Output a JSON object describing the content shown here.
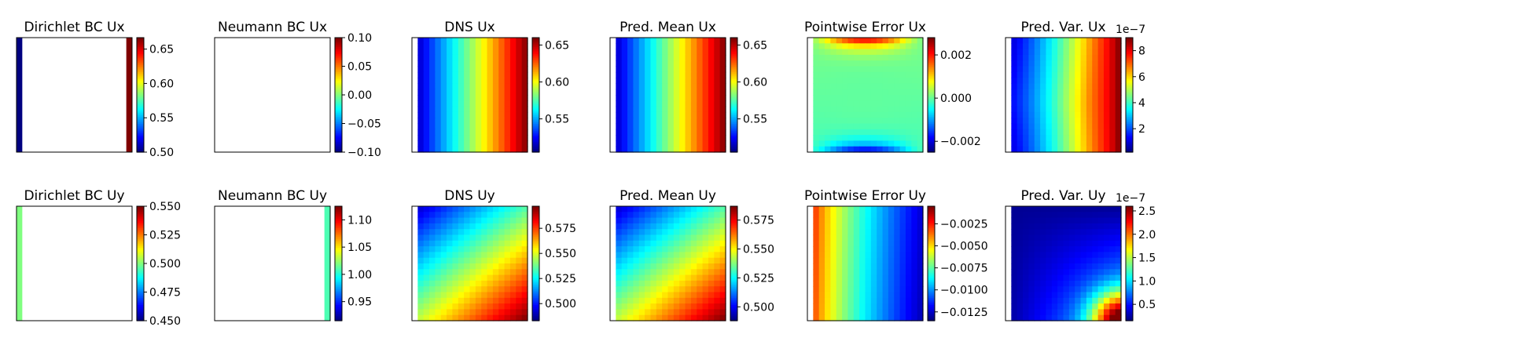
{
  "colormap": "jet",
  "chart_data": [
    {
      "type": "heatmap",
      "title": "Dirichlet BC Ux",
      "pattern": "dir_x",
      "vmin": 0.5,
      "vmax": 0.6667,
      "colorbar_ticks": [
        "0.50",
        "0.55",
        "0.60",
        "0.65"
      ],
      "colorbar_tick_values": [
        0.5,
        0.55,
        0.6,
        0.65
      ],
      "multiplier": ""
    },
    {
      "type": "heatmap",
      "title": "Neumann BC Ux",
      "pattern": "blank",
      "vmin": -0.1,
      "vmax": 0.1,
      "colorbar_ticks": [
        "−0.10",
        "−0.05",
        "0.00",
        "0.05",
        "0.10"
      ],
      "colorbar_tick_values": [
        -0.1,
        -0.05,
        0.0,
        0.05,
        0.1
      ],
      "multiplier": ""
    },
    {
      "type": "heatmap",
      "title": "DNS Ux",
      "pattern": "grad_x",
      "vmin": 0.505,
      "vmax": 0.66,
      "colorbar_ticks": [
        "0.55",
        "0.60",
        "0.65"
      ],
      "colorbar_tick_values": [
        0.55,
        0.6,
        0.65
      ],
      "multiplier": ""
    },
    {
      "type": "heatmap",
      "title": "Pred. Mean Ux",
      "pattern": "grad_x",
      "vmin": 0.505,
      "vmax": 0.66,
      "colorbar_ticks": [
        "0.55",
        "0.60",
        "0.65"
      ],
      "colorbar_tick_values": [
        0.55,
        0.6,
        0.65
      ],
      "multiplier": ""
    },
    {
      "type": "heatmap",
      "title": "Pointwise Error Ux",
      "pattern": "err_x",
      "vmin": -0.0025,
      "vmax": 0.0028,
      "colorbar_ticks": [
        "−0.002",
        "0.000",
        "0.002"
      ],
      "colorbar_tick_values": [
        -0.002,
        0.0,
        0.002
      ],
      "multiplier": ""
    },
    {
      "type": "heatmap",
      "title": "Pred. Var. Ux",
      "pattern": "var_x",
      "vmin": 0.2,
      "vmax": 9.0,
      "colorbar_ticks": [
        "2",
        "4",
        "6",
        "8"
      ],
      "colorbar_tick_values": [
        2,
        4,
        6,
        8
      ],
      "multiplier": "1e−7"
    },
    {
      "type": "heatmap",
      "title": "Dirichlet BC Uy",
      "pattern": "dir_y",
      "vmin": 0.45,
      "vmax": 0.55,
      "colorbar_ticks": [
        "0.450",
        "0.475",
        "0.500",
        "0.525",
        "0.550"
      ],
      "colorbar_tick_values": [
        0.45,
        0.475,
        0.5,
        0.525,
        0.55
      ],
      "multiplier": ""
    },
    {
      "type": "heatmap",
      "title": "Neumann BC Uy",
      "pattern": "neu_y",
      "vmin": 0.915,
      "vmax": 1.125,
      "colorbar_ticks": [
        "0.95",
        "1.00",
        "1.05",
        "1.10"
      ],
      "colorbar_tick_values": [
        0.95,
        1.0,
        1.05,
        1.1
      ],
      "multiplier": ""
    },
    {
      "type": "heatmap",
      "title": "DNS Uy",
      "pattern": "diag_y",
      "vmin": 0.483,
      "vmax": 0.597,
      "colorbar_ticks": [
        "0.500",
        "0.525",
        "0.550",
        "0.575"
      ],
      "colorbar_tick_values": [
        0.5,
        0.525,
        0.55,
        0.575
      ],
      "multiplier": ""
    },
    {
      "type": "heatmap",
      "title": "Pred. Mean Uy",
      "pattern": "diag_y",
      "vmin": 0.488,
      "vmax": 0.587,
      "colorbar_ticks": [
        "0.500",
        "0.525",
        "0.550",
        "0.575"
      ],
      "colorbar_tick_values": [
        0.5,
        0.525,
        0.55,
        0.575
      ],
      "multiplier": ""
    },
    {
      "type": "heatmap",
      "title": "Pointwise Error Uy",
      "pattern": "err_y",
      "vmin": -0.0135,
      "vmax": -0.0005,
      "colorbar_ticks": [
        "−0.0125",
        "−0.0100",
        "−0.0075",
        "−0.0050",
        "−0.0025"
      ],
      "colorbar_tick_values": [
        -0.0125,
        -0.01,
        -0.0075,
        -0.005,
        -0.0025
      ],
      "multiplier": ""
    },
    {
      "type": "heatmap",
      "title": "Pred. Var. Uy",
      "pattern": "var_y",
      "vmin": 0.15,
      "vmax": 2.6,
      "colorbar_ticks": [
        "0.5",
        "1.0",
        "1.5",
        "2.0",
        "2.5"
      ],
      "colorbar_tick_values": [
        0.5,
        1.0,
        1.5,
        2.0,
        2.5
      ],
      "multiplier": "1e−7"
    }
  ]
}
